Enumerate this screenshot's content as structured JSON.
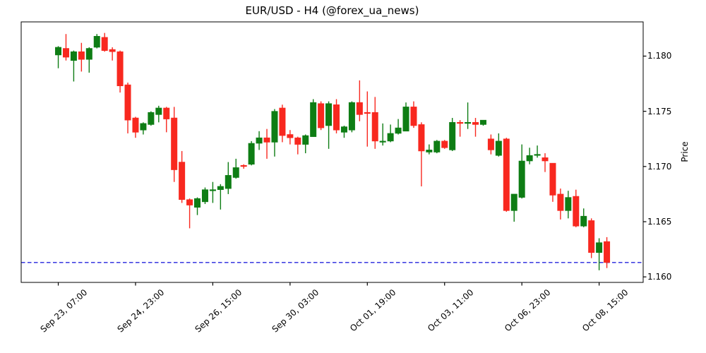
{
  "chart_data": {
    "type": "candlestick",
    "title": "EUR/USD - H4 (@forex_ua_news)",
    "ylabel": "Price",
    "up_color": "#0e7d14",
    "down_color": "#f8281f",
    "axis_color": "#000000",
    "background": "#ffffff",
    "grid": false,
    "ylim": [
      1.1595,
      1.1831
    ],
    "xlim": [
      -4.8,
      75.7
    ],
    "hline": {
      "price": 1.1613,
      "color": "#2323dd",
      "style": "dashed"
    },
    "y_ticks": [
      {
        "value": 1.18,
        "label": "1.180"
      },
      {
        "value": 1.175,
        "label": "1.175"
      },
      {
        "value": 1.17,
        "label": "1.170"
      },
      {
        "value": 1.165,
        "label": "1.165"
      },
      {
        "value": 1.16,
        "label": "1.160"
      }
    ],
    "x_ticks": [
      {
        "index": 0,
        "label": "Sep 23, 07:00"
      },
      {
        "index": 10,
        "label": "Sep 24, 23:00"
      },
      {
        "index": 20,
        "label": "Sep 26, 15:00"
      },
      {
        "index": 30,
        "label": "Sep 30, 03:00"
      },
      {
        "index": 40,
        "label": "Oct 01, 19:00"
      },
      {
        "index": 50,
        "label": "Oct 03, 11:00"
      },
      {
        "index": 60,
        "label": "Oct 06, 23:00"
      },
      {
        "index": 70,
        "label": "Oct 08, 15:00"
      }
    ],
    "candles": [
      [
        1.1801,
        1.1809,
        1.1789,
        1.1808
      ],
      [
        1.1807,
        1.182,
        1.1796,
        1.1799
      ],
      [
        1.1796,
        1.1805,
        1.1777,
        1.1804
      ],
      [
        1.1804,
        1.1812,
        1.1786,
        1.1797
      ],
      [
        1.1797,
        1.1808,
        1.1785,
        1.1807
      ],
      [
        1.1808,
        1.182,
        1.1807,
        1.1818
      ],
      [
        1.1817,
        1.1821,
        1.1804,
        1.1805
      ],
      [
        1.1806,
        1.1808,
        1.1796,
        1.1804
      ],
      [
        1.1804,
        1.1805,
        1.1767,
        1.1773
      ],
      [
        1.1774,
        1.1776,
        1.173,
        1.1742
      ],
      [
        1.1744,
        1.1745,
        1.1726,
        1.1731
      ],
      [
        1.1733,
        1.174,
        1.1729,
        1.1739
      ],
      [
        1.1738,
        1.175,
        1.1737,
        1.1749
      ],
      [
        1.1747,
        1.1755,
        1.174,
        1.1753
      ],
      [
        1.1753,
        1.1754,
        1.1731,
        1.1743
      ],
      [
        1.1744,
        1.1754,
        1.1686,
        1.1697
      ],
      [
        1.1704,
        1.1714,
        1.1667,
        1.167
      ],
      [
        1.167,
        1.1671,
        1.1644,
        1.1665
      ],
      [
        1.1663,
        1.1672,
        1.1656,
        1.1671
      ],
      [
        1.1668,
        1.1681,
        1.1666,
        1.1679
      ],
      [
        1.1678,
        1.1686,
        1.1667,
        1.1679
      ],
      [
        1.1679,
        1.1684,
        1.1661,
        1.1682
      ],
      [
        1.168,
        1.1704,
        1.1675,
        1.1692
      ],
      [
        1.169,
        1.1707,
        1.1689,
        1.1699
      ],
      [
        1.1701,
        1.1702,
        1.1698,
        1.17
      ],
      [
        1.1702,
        1.1723,
        1.1701,
        1.1721
      ],
      [
        1.1721,
        1.1732,
        1.1715,
        1.1726
      ],
      [
        1.1726,
        1.1734,
        1.1707,
        1.1722
      ],
      [
        1.1722,
        1.1752,
        1.1709,
        1.175
      ],
      [
        1.1753,
        1.1756,
        1.1722,
        1.1728
      ],
      [
        1.1729,
        1.1733,
        1.172,
        1.1726
      ],
      [
        1.1726,
        1.1727,
        1.1711,
        1.172
      ],
      [
        1.172,
        1.1729,
        1.1712,
        1.1728
      ],
      [
        1.1727,
        1.1761,
        1.1727,
        1.1758
      ],
      [
        1.1757,
        1.1759,
        1.1733,
        1.1735
      ],
      [
        1.1737,
        1.1759,
        1.1716,
        1.1757
      ],
      [
        1.1756,
        1.1761,
        1.173,
        1.1733
      ],
      [
        1.1731,
        1.1737,
        1.1726,
        1.1736
      ],
      [
        1.1733,
        1.1759,
        1.1731,
        1.1758
      ],
      [
        1.1758,
        1.1778,
        1.1741,
        1.1747
      ],
      [
        1.1749,
        1.1768,
        1.1718,
        1.1748
      ],
      [
        1.1749,
        1.1763,
        1.1716,
        1.1723
      ],
      [
        1.1722,
        1.1739,
        1.1719,
        1.1723
      ],
      [
        1.1723,
        1.1738,
        1.1722,
        1.173
      ],
      [
        1.173,
        1.1743,
        1.1729,
        1.1735
      ],
      [
        1.1732,
        1.1758,
        1.1732,
        1.1754
      ],
      [
        1.1754,
        1.1759,
        1.1735,
        1.1737
      ],
      [
        1.1738,
        1.174,
        1.1682,
        1.1714
      ],
      [
        1.1713,
        1.172,
        1.1711,
        1.1715
      ],
      [
        1.1713,
        1.1724,
        1.1712,
        1.1723
      ],
      [
        1.1723,
        1.1724,
        1.1716,
        1.1717
      ],
      [
        1.1715,
        1.1744,
        1.1714,
        1.174
      ],
      [
        1.174,
        1.1742,
        1.1727,
        1.1739
      ],
      [
        1.1739,
        1.1758,
        1.1734,
        1.174
      ],
      [
        1.174,
        1.1744,
        1.1727,
        1.1738
      ],
      [
        1.1738,
        1.1742,
        1.1737,
        1.1742
      ],
      [
        1.1725,
        1.1729,
        1.1711,
        1.1715
      ],
      [
        1.171,
        1.173,
        1.1709,
        1.1723
      ],
      [
        1.1725,
        1.1726,
        1.1659,
        1.166
      ],
      [
        1.166,
        1.1675,
        1.165,
        1.1675
      ],
      [
        1.1672,
        1.172,
        1.1671,
        1.1705
      ],
      [
        1.1705,
        1.1717,
        1.1702,
        1.171
      ],
      [
        1.171,
        1.1719,
        1.1708,
        1.1711
      ],
      [
        1.1708,
        1.1712,
        1.1695,
        1.1705
      ],
      [
        1.1703,
        1.1703,
        1.1668,
        1.1674
      ],
      [
        1.1675,
        1.168,
        1.1652,
        1.166
      ],
      [
        1.166,
        1.1678,
        1.1653,
        1.1672
      ],
      [
        1.1673,
        1.1679,
        1.1645,
        1.1646
      ],
      [
        1.1646,
        1.1662,
        1.1645,
        1.1655
      ],
      [
        1.1651,
        1.1653,
        1.1617,
        1.1622
      ],
      [
        1.1622,
        1.1635,
        1.1606,
        1.1631
      ],
      [
        1.1632,
        1.1636,
        1.1608,
        1.1613
      ]
    ]
  }
}
